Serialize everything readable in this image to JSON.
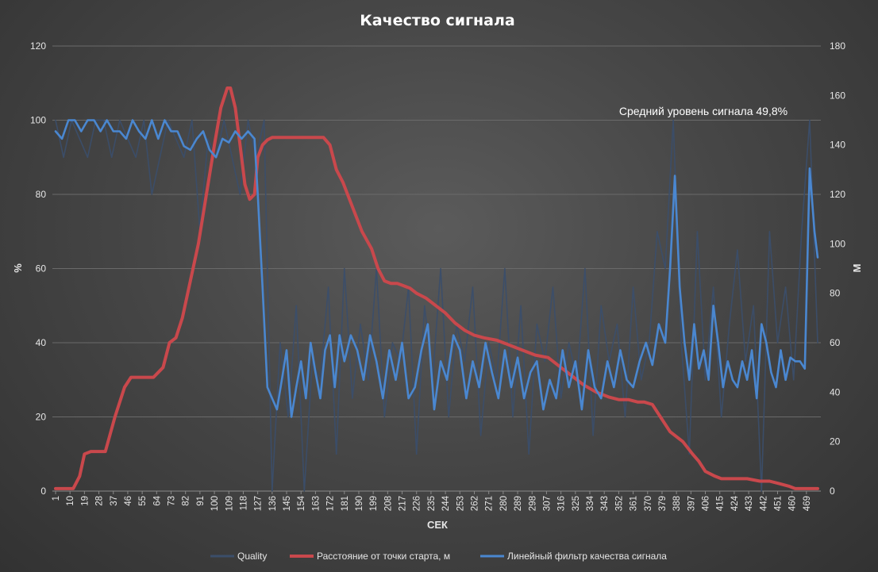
{
  "chart_data": {
    "type": "line",
    "title": "Качество сигнала",
    "xlabel": "СЕК",
    "ylabel_left": "%",
    "ylabel_right": "М",
    "ylim_left": [
      0,
      120
    ],
    "ylim_right": [
      0,
      180
    ],
    "yticks_left": [
      0,
      20,
      40,
      60,
      80,
      100,
      120
    ],
    "yticks_right": [
      0,
      20,
      40,
      60,
      80,
      100,
      120,
      140,
      160,
      180
    ],
    "xlim": [
      1,
      476
    ],
    "xticks": [
      1,
      10,
      19,
      28,
      37,
      46,
      55,
      64,
      73,
      82,
      91,
      100,
      109,
      118,
      127,
      136,
      145,
      154,
      163,
      172,
      181,
      190,
      199,
      208,
      217,
      226,
      235,
      244,
      253,
      262,
      271,
      280,
      289,
      298,
      307,
      316,
      325,
      334,
      343,
      352,
      361,
      370,
      379,
      388,
      397,
      406,
      415,
      424,
      433,
      442,
      451,
      460,
      469
    ],
    "annotation": "Средний уровень сигнала 49,8%",
    "legend_position": "bottom",
    "series": [
      {
        "name": "Quality",
        "axis": "left",
        "color": "#3b4e6a",
        "x": [
          1,
          6,
          11,
          16,
          21,
          26,
          31,
          36,
          41,
          46,
          51,
          56,
          61,
          66,
          71,
          76,
          81,
          86,
          91,
          96,
          101,
          106,
          111,
          116,
          121,
          126,
          131,
          136,
          141,
          146,
          151,
          156,
          161,
          166,
          171,
          176,
          181,
          186,
          191,
          196,
          201,
          206,
          211,
          216,
          221,
          226,
          231,
          236,
          241,
          246,
          251,
          256,
          261,
          266,
          271,
          276,
          281,
          286,
          291,
          296,
          301,
          306,
          311,
          316,
          321,
          326,
          331,
          336,
          341,
          346,
          351,
          356,
          361,
          366,
          371,
          376,
          381,
          386,
          391,
          396,
          401,
          406,
          411,
          416,
          421,
          426,
          431,
          436,
          441,
          446,
          451,
          456,
          461,
          466,
          471,
          476
        ],
        "values": [
          100,
          90,
          100,
          95,
          90,
          100,
          100,
          90,
          100,
          95,
          90,
          100,
          80,
          90,
          100,
          95,
          90,
          100,
          70,
          95,
          90,
          100,
          90,
          80,
          100,
          90,
          100,
          0,
          40,
          20,
          50,
          0,
          35,
          30,
          55,
          10,
          60,
          25,
          45,
          30,
          60,
          20,
          40,
          35,
          55,
          10,
          50,
          30,
          60,
          20,
          45,
          35,
          55,
          15,
          40,
          30,
          60,
          20,
          50,
          10,
          45,
          35,
          55,
          25,
          40,
          30,
          60,
          15,
          50,
          35,
          45,
          20,
          55,
          30,
          40,
          70,
          60,
          100,
          40,
          10,
          70,
          30,
          55,
          20,
          45,
          65,
          35,
          50,
          0,
          70,
          40,
          55,
          30,
          70,
          100,
          40
        ]
      },
      {
        "name": "Расстояние от точки старта, м",
        "axis": "right",
        "color": "#c9484c",
        "x": [
          1,
          8,
          12,
          16,
          19,
          23,
          28,
          32,
          38,
          44,
          48,
          52,
          58,
          62,
          68,
          72,
          76,
          80,
          85,
          90,
          95,
          100,
          104,
          108,
          110,
          113,
          116,
          119,
          122,
          125,
          127,
          130,
          133,
          136,
          140,
          145,
          150,
          156,
          163,
          168,
          172,
          176,
          180,
          186,
          192,
          198,
          202,
          206,
          210,
          214,
          218,
          222,
          226,
          232,
          238,
          244,
          250,
          256,
          262,
          268,
          276,
          284,
          292,
          300,
          308,
          316,
          322,
          330,
          338,
          346,
          352,
          358,
          364,
          368,
          373,
          378,
          384,
          392,
          398,
          402,
          406,
          412,
          416,
          424,
          432,
          440,
          446,
          452,
          458,
          462,
          466,
          470,
          476
        ],
        "values": [
          1,
          1,
          1,
          6,
          15,
          16,
          16,
          16,
          30,
          42,
          46,
          46,
          46,
          46,
          50,
          60,
          62,
          70,
          85,
          100,
          120,
          140,
          155,
          163,
          163,
          155,
          140,
          124,
          118,
          120,
          135,
          140,
          142,
          143,
          143,
          143,
          143,
          143,
          143,
          143,
          140,
          130,
          125,
          115,
          105,
          98,
          90,
          85,
          84,
          84,
          83,
          82,
          80,
          78,
          75,
          72,
          68,
          65,
          63,
          62,
          61,
          59,
          57,
          55,
          54,
          50,
          47,
          43,
          40,
          38,
          37,
          37,
          36,
          36,
          35,
          30,
          24,
          20,
          15,
          12,
          8,
          6,
          5,
          5,
          5,
          4,
          4,
          3,
          2,
          1,
          1,
          1,
          1
        ]
      },
      {
        "name": "Линейный фильтр качества сигнала",
        "axis": "left",
        "color": "#4a87d0",
        "x": [
          1,
          5,
          9,
          13,
          17,
          21,
          25,
          29,
          33,
          37,
          41,
          45,
          49,
          53,
          57,
          61,
          65,
          69,
          73,
          77,
          81,
          85,
          89,
          93,
          97,
          101,
          105,
          109,
          113,
          117,
          121,
          125,
          127,
          130,
          133,
          136,
          139,
          142,
          145,
          148,
          151,
          154,
          157,
          160,
          163,
          166,
          169,
          172,
          175,
          178,
          181,
          185,
          189,
          193,
          197,
          201,
          205,
          209,
          213,
          217,
          221,
          225,
          229,
          233,
          237,
          241,
          245,
          249,
          253,
          257,
          261,
          265,
          269,
          273,
          277,
          281,
          285,
          289,
          293,
          297,
          301,
          305,
          309,
          313,
          317,
          321,
          325,
          329,
          333,
          337,
          341,
          345,
          349,
          353,
          357,
          361,
          365,
          369,
          373,
          377,
          381,
          384,
          387,
          390,
          393,
          396,
          399,
          402,
          405,
          408,
          411,
          414,
          417,
          420,
          423,
          426,
          429,
          432,
          435,
          438,
          441,
          444,
          447,
          450,
          453,
          456,
          459,
          462,
          465,
          468,
          471,
          474,
          476
        ],
        "values": [
          97,
          95,
          100,
          100,
          97,
          100,
          100,
          97,
          100,
          97,
          97,
          95,
          100,
          97,
          95,
          100,
          95,
          100,
          97,
          97,
          93,
          92,
          95,
          97,
          92,
          90,
          95,
          94,
          97,
          95,
          97,
          95,
          80,
          55,
          28,
          25,
          22,
          30,
          38,
          20,
          28,
          35,
          25,
          40,
          32,
          25,
          38,
          42,
          28,
          42,
          35,
          42,
          38,
          30,
          42,
          35,
          25,
          38,
          30,
          40,
          25,
          28,
          38,
          45,
          22,
          35,
          30,
          42,
          38,
          25,
          35,
          28,
          40,
          32,
          25,
          38,
          28,
          36,
          25,
          32,
          35,
          22,
          30,
          25,
          38,
          28,
          35,
          22,
          38,
          28,
          25,
          35,
          28,
          38,
          30,
          28,
          35,
          40,
          34,
          45,
          40,
          60,
          85,
          55,
          40,
          30,
          45,
          33,
          38,
          30,
          50,
          40,
          28,
          35,
          30,
          28,
          35,
          30,
          38,
          25,
          45,
          40,
          32,
          28,
          38,
          30,
          36,
          35,
          35,
          33,
          87,
          70,
          63
        ]
      }
    ]
  }
}
